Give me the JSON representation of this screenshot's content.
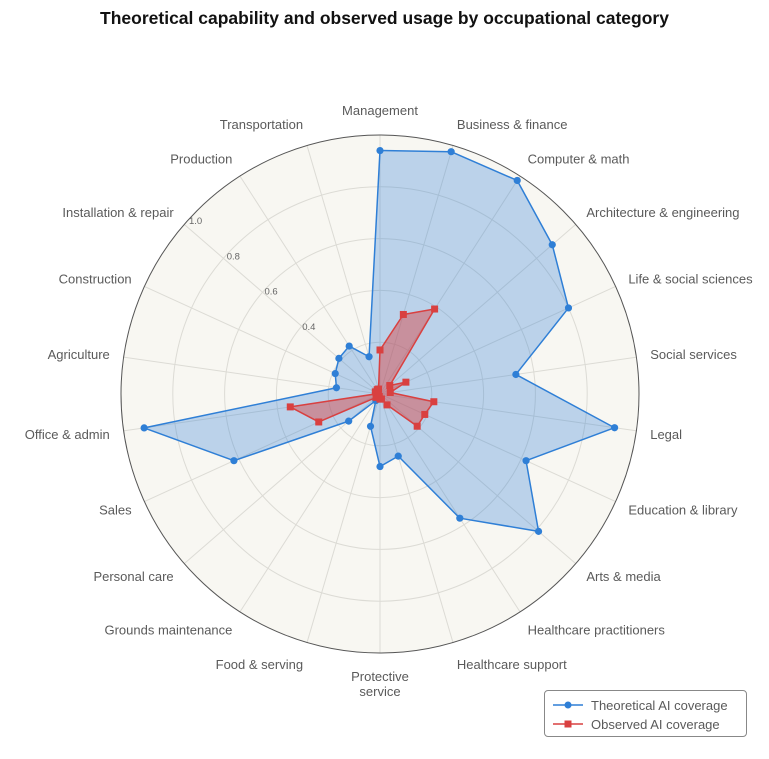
{
  "chart_data": {
    "type": "radar",
    "title": "Theoretical capability and observed usage by occupational category",
    "categories": [
      "Management",
      "Business & finance",
      "Computer & math",
      "Architecture & engineering",
      "Life & social sciences",
      "Social services",
      "Legal",
      "Education & library",
      "Arts & media",
      "Healthcare practitioners",
      "Healthcare support",
      "Protective service",
      "Food & serving",
      "Grounds maintenance",
      "Personal care",
      "Sales",
      "Office & admin",
      "Agriculture",
      "Construction",
      "Installation & repair",
      "Production",
      "Transportation"
    ],
    "radial_range": [
      0,
      1.0
    ],
    "radial_ticks": [
      "0.4",
      "0.6",
      "0.8",
      "1.0"
    ],
    "radial_tick_values": [
      0.4,
      0.6,
      0.8,
      1.0
    ],
    "grid": true,
    "legend_position": "bottom-right",
    "series": [
      {
        "name": "Theoretical AI coverage",
        "color": "#2f7fd6",
        "marker": "circle",
        "values": [
          0.94,
          0.975,
          0.98,
          0.88,
          0.8,
          0.53,
          0.915,
          0.62,
          0.81,
          0.57,
          0.25,
          0.28,
          0.13,
          0.03,
          0.16,
          0.62,
          0.92,
          0.17,
          0.19,
          0.21,
          0.22,
          0.15
        ]
      },
      {
        "name": "Observed AI coverage",
        "color": "#d94040",
        "marker": "square",
        "values": [
          0.17,
          0.32,
          0.39,
          0.05,
          0.11,
          0.04,
          0.21,
          0.19,
          0.19,
          0.05,
          0.02,
          0.02,
          0.01,
          0.01,
          0.02,
          0.26,
          0.35,
          0.01,
          0.02,
          0.01,
          0.02,
          0.02
        ]
      }
    ]
  }
}
